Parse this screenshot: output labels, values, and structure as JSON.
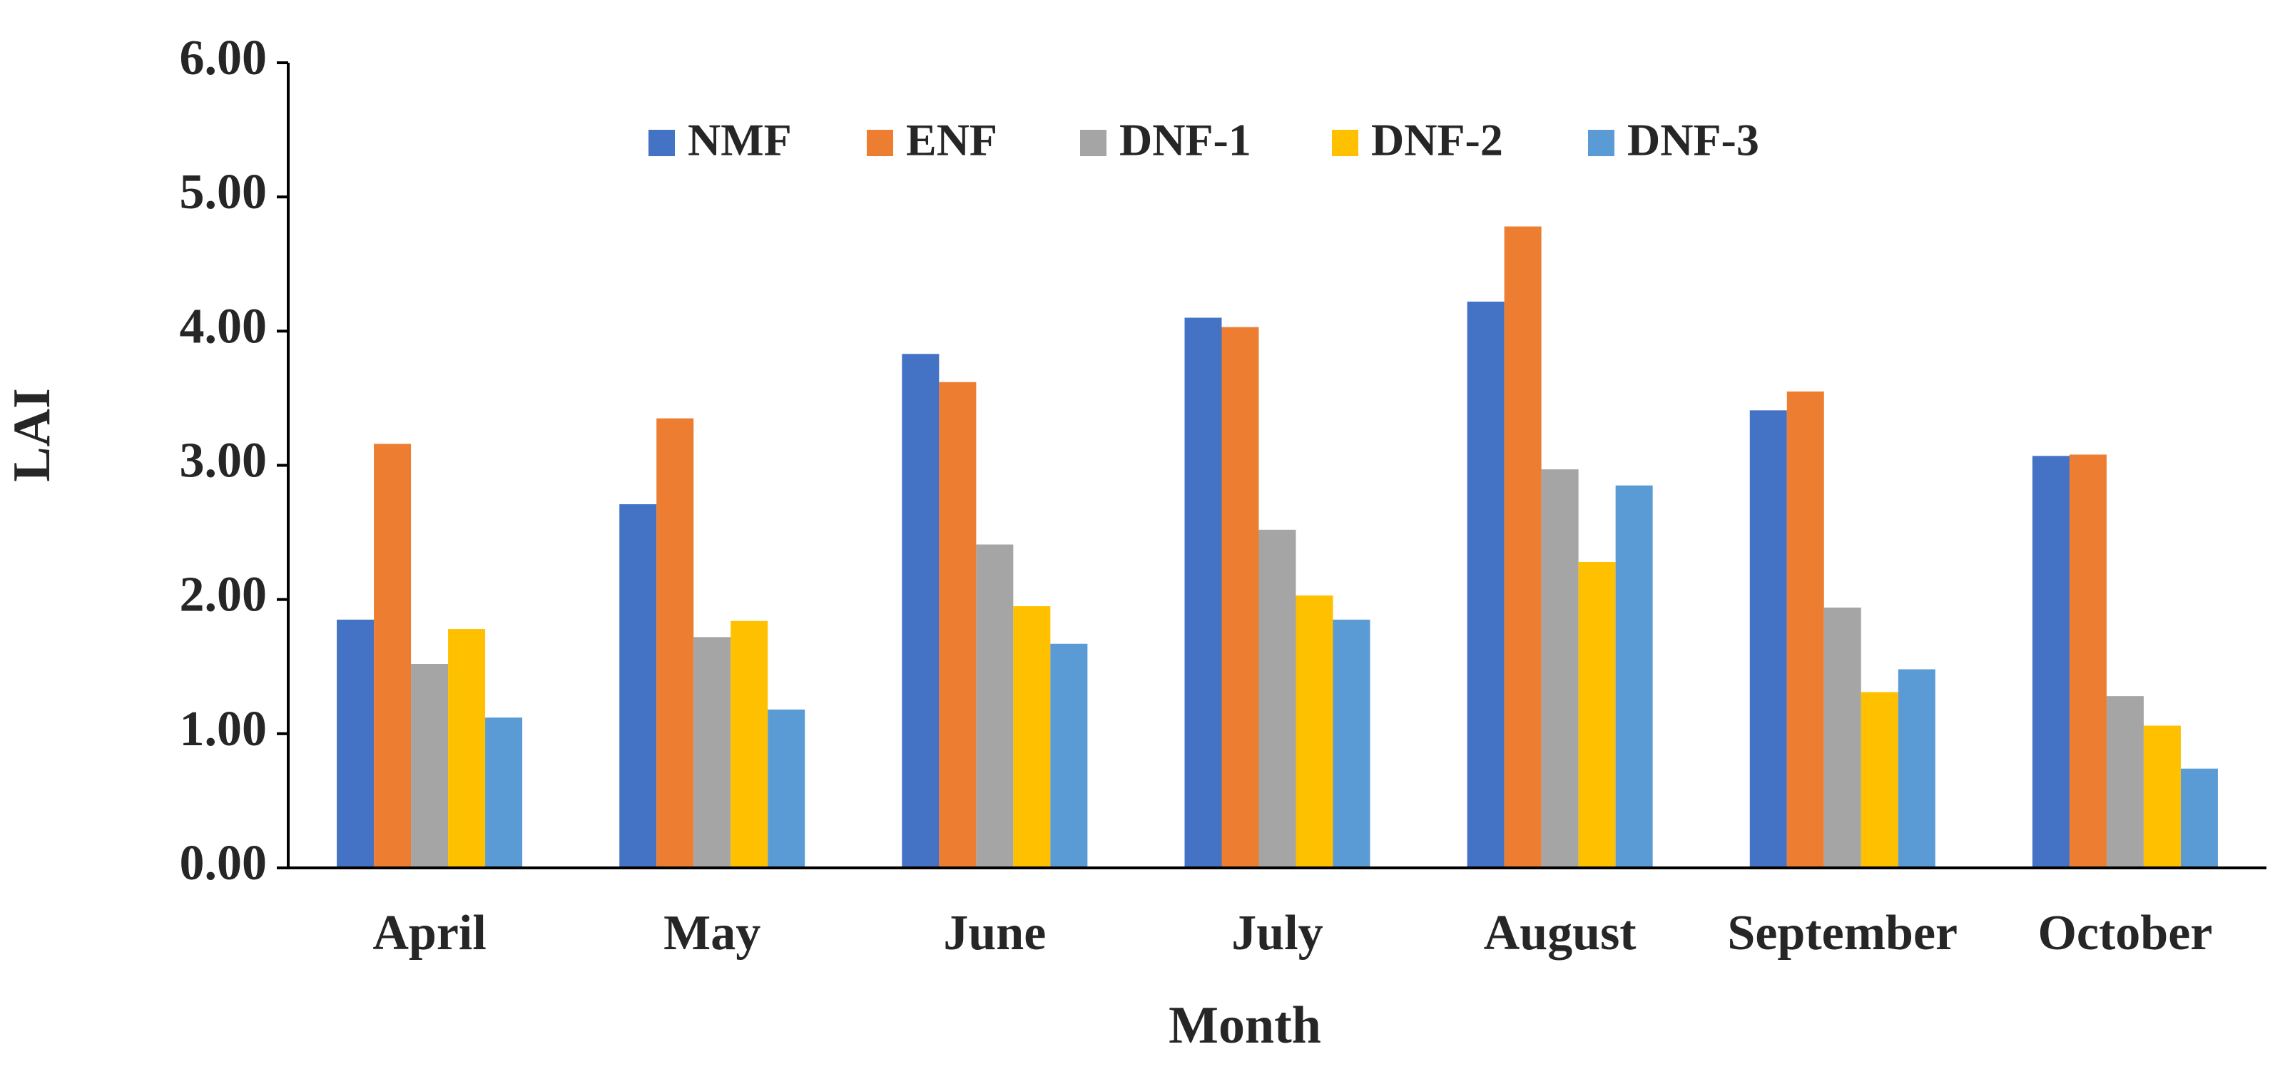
{
  "chart_data": {
    "type": "bar",
    "x_label": "Month",
    "y_label": "LAI",
    "categories": [
      "April",
      "May",
      "June",
      "July",
      "August",
      "September",
      "October"
    ],
    "series": [
      {
        "name": "NMF",
        "color": "#4472c4",
        "values": [
          1.85,
          2.71,
          3.83,
          4.1,
          4.22,
          3.41,
          3.07
        ]
      },
      {
        "name": "ENF",
        "color": "#ed7d31",
        "values": [
          3.16,
          3.35,
          3.62,
          4.03,
          4.78,
          3.55,
          3.08
        ]
      },
      {
        "name": "DNF-1",
        "color": "#a5a5a5",
        "values": [
          1.52,
          1.72,
          2.41,
          2.52,
          2.97,
          1.94,
          1.28
        ]
      },
      {
        "name": "DNF-2",
        "color": "#ffc000",
        "values": [
          1.78,
          1.84,
          1.95,
          2.03,
          2.28,
          1.31,
          1.06
        ]
      },
      {
        "name": "DNF-3",
        "color": "#5b9bd5",
        "values": [
          1.12,
          1.18,
          1.67,
          1.85,
          2.85,
          1.48,
          0.74
        ]
      }
    ],
    "ylim": [
      0,
      6
    ],
    "yticks": [
      {
        "value": 0,
        "label": "0.00"
      },
      {
        "value": 1,
        "label": "1.00"
      },
      {
        "value": 2,
        "label": "2.00"
      },
      {
        "value": 3,
        "label": "3.00"
      },
      {
        "value": 4,
        "label": "4.00"
      },
      {
        "value": 5,
        "label": "5.00"
      },
      {
        "value": 6,
        "label": "6.00"
      }
    ],
    "grid": false,
    "legend": "top"
  }
}
